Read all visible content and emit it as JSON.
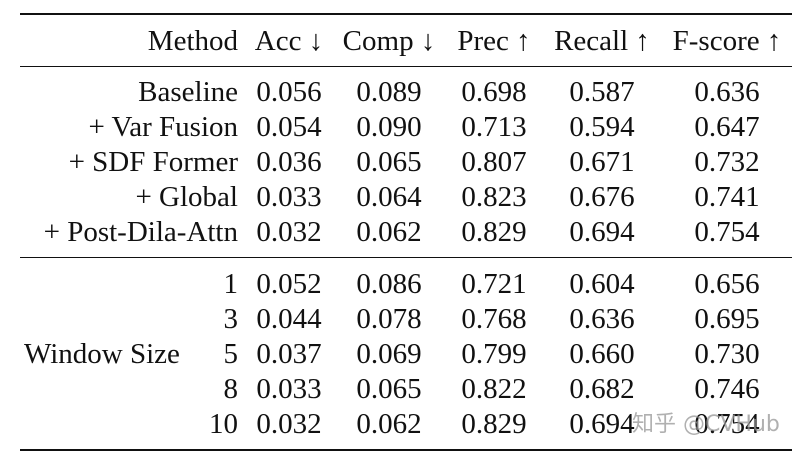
{
  "table": {
    "headers": [
      "Method",
      "Acc ↓",
      "Comp ↓",
      "Prec ↑",
      "Recall ↑",
      "F-score ↑"
    ],
    "ablation_rows": [
      {
        "method": "Baseline",
        "values": [
          "0.056",
          "0.089",
          "0.698",
          "0.587",
          "0.636"
        ]
      },
      {
        "method": "+ Var Fusion",
        "values": [
          "0.054",
          "0.090",
          "0.713",
          "0.594",
          "0.647"
        ]
      },
      {
        "method": "+ SDF Former",
        "values": [
          "0.036",
          "0.065",
          "0.807",
          "0.671",
          "0.732"
        ]
      },
      {
        "method": "+ Global",
        "values": [
          "0.033",
          "0.064",
          "0.823",
          "0.676",
          "0.741"
        ]
      },
      {
        "method": "+ Post-Dila-Attn",
        "values": [
          "0.032",
          "0.062",
          "0.829",
          "0.694",
          "0.754"
        ]
      }
    ],
    "window_group_label": "Window Size",
    "window_rows": [
      {
        "size": "1",
        "values": [
          "0.052",
          "0.086",
          "0.721",
          "0.604",
          "0.656"
        ]
      },
      {
        "size": "3",
        "values": [
          "0.044",
          "0.078",
          "0.768",
          "0.636",
          "0.695"
        ]
      },
      {
        "size": "5",
        "values": [
          "0.037",
          "0.069",
          "0.799",
          "0.660",
          "0.730"
        ]
      },
      {
        "size": "8",
        "values": [
          "0.033",
          "0.065",
          "0.822",
          "0.682",
          "0.746"
        ]
      },
      {
        "size": "10",
        "values": [
          "0.032",
          "0.062",
          "0.829",
          "0.694",
          "0.754"
        ]
      }
    ]
  },
  "watermark": "知乎 @CVHub"
}
